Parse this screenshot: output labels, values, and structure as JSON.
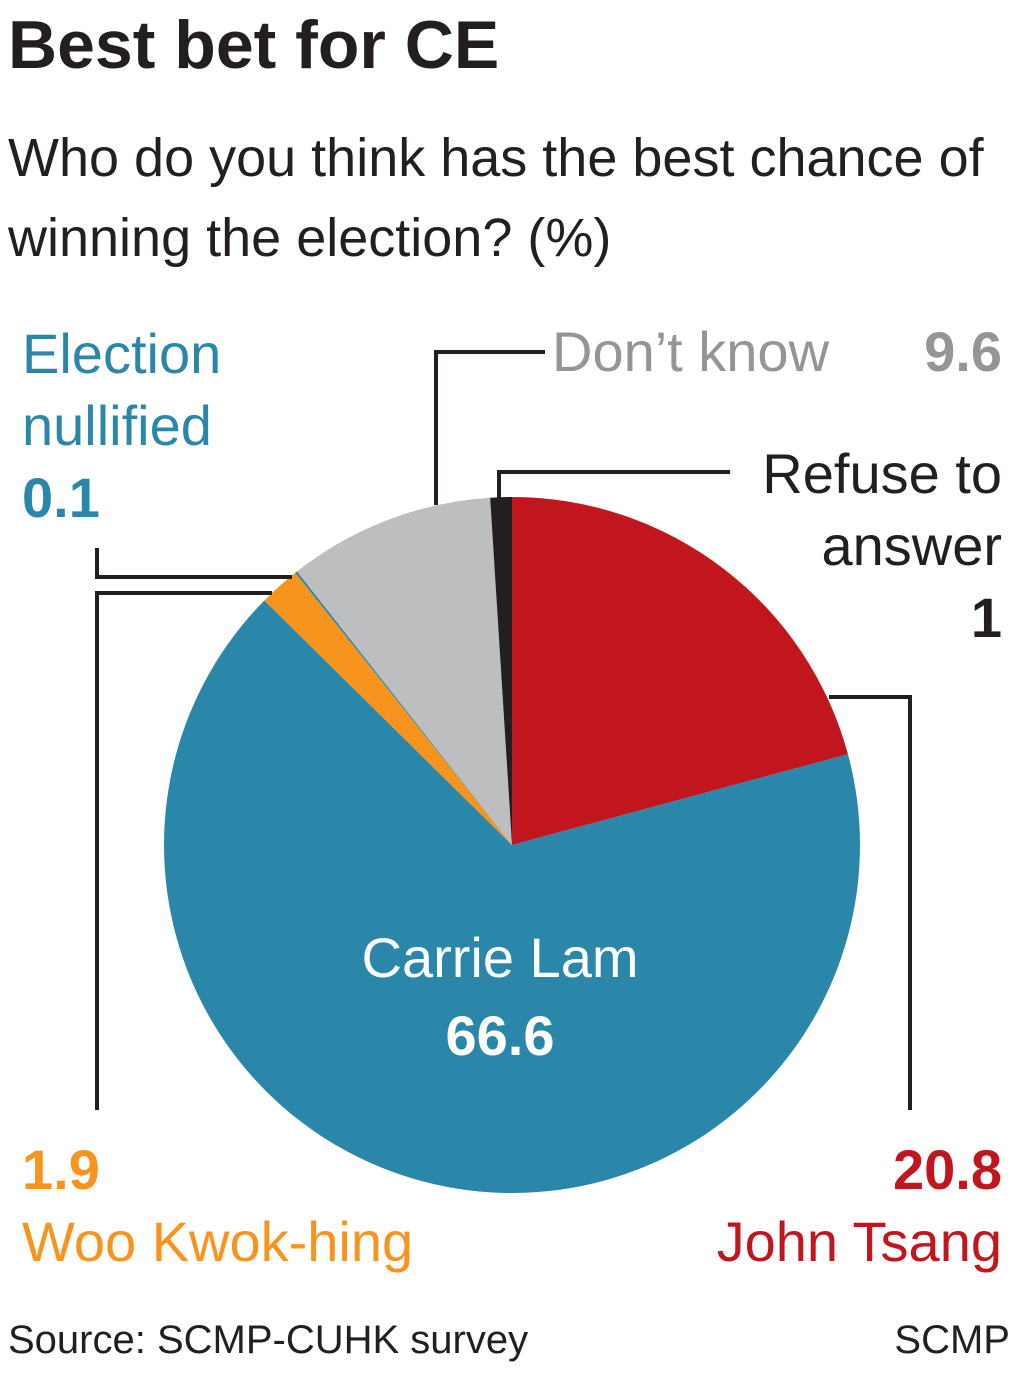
{
  "title": "Best bet for CE",
  "subtitle": "Who do you think has the best chance of winning the election? (%)",
  "source": "Source: SCMP-CUHK survey",
  "credit": "SCMP",
  "chart_data": {
    "type": "pie",
    "unit": "%",
    "slices": [
      {
        "label": "John Tsang",
        "value": 20.8,
        "value_text": "20.8",
        "color": "#c1161d"
      },
      {
        "label": "Carrie Lam",
        "value": 66.6,
        "value_text": "66.6",
        "color": "#2b87a9"
      },
      {
        "label": "Woo Kwok-hing",
        "value": 1.9,
        "value_text": "1.9",
        "color": "#f7941d"
      },
      {
        "label": "Election nullified",
        "value": 0.1,
        "value_text": "0.1",
        "color": "#2b87a9"
      },
      {
        "label": "Don’t know",
        "value": 9.6,
        "value_text": "9.6",
        "color": "#bcbec0"
      },
      {
        "label": "Refuse to answer",
        "value": 1,
        "value_text": "1",
        "color": "#231f20"
      }
    ]
  }
}
